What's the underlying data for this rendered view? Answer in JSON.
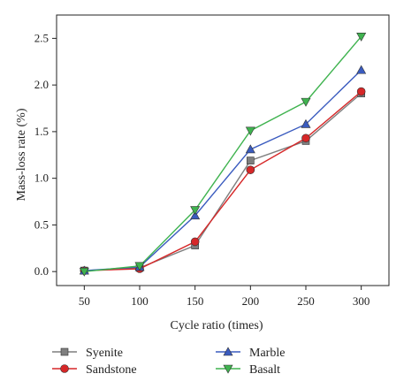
{
  "chart_data": {
    "type": "line",
    "title": "",
    "xlabel": "Cycle ratio (times)",
    "ylabel": "Mass-loss rate (%)",
    "x": [
      50,
      100,
      150,
      200,
      250,
      300
    ],
    "xlim": [
      25,
      325
    ],
    "ylim": [
      -0.15,
      2.75
    ],
    "xticks": [
      50,
      100,
      150,
      200,
      250,
      300
    ],
    "yticks": [
      0.0,
      0.5,
      1.0,
      1.5,
      2.0,
      2.5
    ],
    "ytick_labels": [
      "0.0",
      "0.5",
      "1.0",
      "1.5",
      "2.0",
      "2.5"
    ],
    "xtick_labels": [
      "50",
      "100",
      "150",
      "200",
      "250",
      "300"
    ],
    "grid": false,
    "legend_position": "bottom",
    "series": [
      {
        "name": "Syenite",
        "color": "#7f7f7f",
        "marker": "square",
        "values": [
          0.01,
          0.04,
          0.28,
          1.19,
          1.4,
          1.91
        ]
      },
      {
        "name": "Sandstone",
        "color": "#d62728",
        "marker": "circle",
        "values": [
          0.01,
          0.03,
          0.32,
          1.09,
          1.43,
          1.93
        ]
      },
      {
        "name": "Marble",
        "color": "#3a5bbf",
        "marker": "triangle-up",
        "values": [
          0.01,
          0.05,
          0.6,
          1.31,
          1.58,
          2.16
        ]
      },
      {
        "name": "Basalt",
        "color": "#3fb34f",
        "marker": "triangle-down",
        "values": [
          0.0,
          0.06,
          0.66,
          1.51,
          1.82,
          2.52
        ]
      }
    ]
  }
}
